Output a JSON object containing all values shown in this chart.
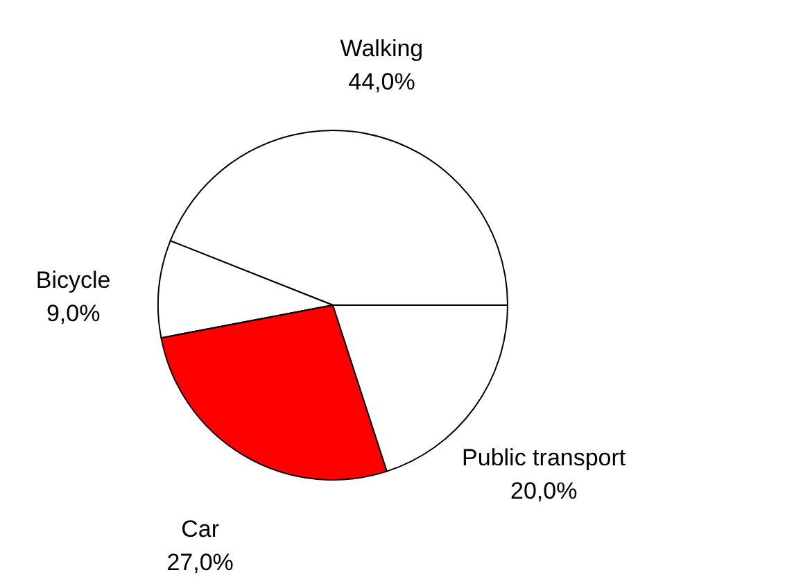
{
  "chart_data": {
    "type": "pie",
    "categories": [
      "Walking",
      "Bicycle",
      "Car",
      "Public transport"
    ],
    "values": [
      44.0,
      9.0,
      27.0,
      20.0
    ],
    "value_labels": [
      "44,0%",
      "9,0%",
      "27,0%",
      "20,0%"
    ],
    "colors": [
      "#ffffff",
      "#ffffff",
      "#ff0000",
      "#ffffff"
    ]
  }
}
